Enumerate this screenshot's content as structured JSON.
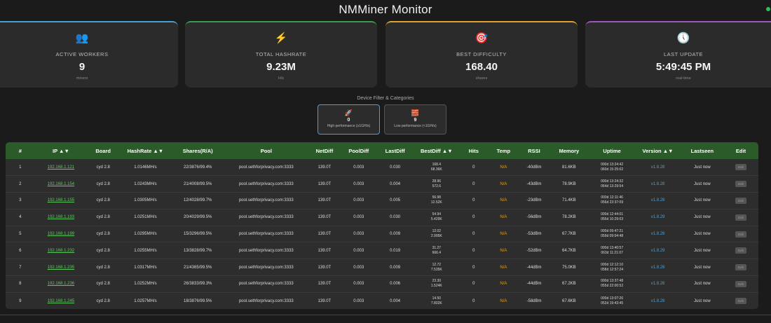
{
  "app": {
    "title": "NMMiner Monitor"
  },
  "cards": [
    {
      "label": "ACTIVE WORKERS",
      "value": "9",
      "sub": "miners",
      "icon": "users-icon",
      "icon_glyph": "👥",
      "color": "#4a9fd6"
    },
    {
      "label": "TOTAL HASHRATE",
      "value": "9.23M",
      "sub": "H/s",
      "icon": "lightning-icon",
      "icon_glyph": "⚡",
      "color": "#3e9a4c"
    },
    {
      "label": "BEST DIFFICULTY",
      "value": "168.40",
      "sub": "shares",
      "icon": "target-icon",
      "icon_glyph": "🎯",
      "color": "#e0a030"
    },
    {
      "label": "LAST UPDATE",
      "value": "5:49:45 PM",
      "sub": "real-time",
      "icon": "clock-icon",
      "icon_glyph": "🕔",
      "color": "#9b59b6"
    }
  ],
  "filter": {
    "title": "Device Filter & Categories",
    "buttons": [
      {
        "count": "0",
        "label": "High performance (≥1GH/s)",
        "icon": "rocket-icon",
        "icon_glyph": "🚀"
      },
      {
        "count": "9",
        "label": "Low performance (<1GH/s)",
        "icon": "brick-icon",
        "icon_glyph": "🧱"
      }
    ]
  },
  "table": {
    "headers": [
      "#",
      "IP ▲▼",
      "Board",
      "HashRate ▲▼",
      "Shares(R/A)",
      "Pool",
      "NetDiff",
      "PoolDiff",
      "LastDiff",
      "BestDiff ▲▼",
      "Hits",
      "Temp",
      "RSSI",
      "Memory",
      "Uptime",
      "Version ▲▼",
      "Lastseen",
      "Edit"
    ],
    "rows": [
      {
        "n": "1",
        "ip": "192.168.1.121",
        "board": "cyd 2.8",
        "hashrate": "1.0146MH/s",
        "shares": "22/3876/99.4%",
        "pool": "pool.sethforprivacy.com:3333",
        "netdiff": "139.0T",
        "pooldiff": "0.003",
        "lastdiff": "0.030",
        "best1": "168.4",
        "best2": "68.36K",
        "hits": "0",
        "temp": "N/A",
        "rssi": "-40dBm",
        "memory": "81.6KB",
        "up1": "000d 13:24:42",
        "up2": "060d 15:25:02",
        "version": "v1.8.28",
        "lastseen": "Just now",
        "edit": "Edit"
      },
      {
        "n": "2",
        "ip": "192.168.1.154",
        "board": "cyd 2.8",
        "hashrate": "1.0243MH/s",
        "shares": "21/4008/99.5%",
        "pool": "pool.sethforprivacy.com:3333",
        "netdiff": "139.0T",
        "pooldiff": "0.003",
        "lastdiff": "0.004",
        "best1": "28.96",
        "best2": "572.6",
        "hits": "0",
        "temp": "N/A",
        "rssi": "-43dBm",
        "memory": "78.9KB",
        "up1": "000d 13:24:32",
        "up2": "064d 13:29:54",
        "version": "v1.8.28",
        "lastseen": "Just now",
        "edit": "Edit"
      },
      {
        "n": "3",
        "ip": "192.168.1.155",
        "board": "cyd 2.8",
        "hashrate": "1.0305MH/s",
        "shares": "12/4028/99.7%",
        "pool": "pool.sethforprivacy.com:3333",
        "netdiff": "139.0T",
        "pooldiff": "0.003",
        "lastdiff": "0.005",
        "best1": "56.98",
        "best2": "12.52K",
        "hits": "0",
        "temp": "N/A",
        "rssi": "-23dBm",
        "memory": "71.4KB",
        "up1": "000d 12:11:46",
        "up2": "056d 23:37:09",
        "version": "v1.8.28",
        "lastseen": "Just now",
        "edit": "Edit"
      },
      {
        "n": "4",
        "ip": "192.168.1.193",
        "board": "cyd 2.8",
        "hashrate": "1.0251MH/s",
        "shares": "20/4029/99.5%",
        "pool": "pool.sethforprivacy.com:3333",
        "netdiff": "139.0T",
        "pooldiff": "0.003",
        "lastdiff": "0.030",
        "best1": "54.94",
        "best2": "5.429K",
        "hits": "0",
        "temp": "N/A",
        "rssi": "-56dBm",
        "memory": "78.2KB",
        "up1": "000d 12:44:01",
        "up2": "055d 10:29:03",
        "version": "v1.8.29",
        "lastseen": "Just now",
        "edit": "Edit"
      },
      {
        "n": "5",
        "ip": "192.168.1.199",
        "board": "cyd 2.8",
        "hashrate": "1.0295MH/s",
        "shares": "15/3296/99.5%",
        "pool": "pool.sethforprivacy.com:3333",
        "netdiff": "139.0T",
        "pooldiff": "0.003",
        "lastdiff": "0.009",
        "best1": "12.02",
        "best2": "2.995K",
        "hits": "0",
        "temp": "N/A",
        "rssi": "-53dBm",
        "memory": "67.7KB",
        "up1": "000d 09:47:21",
        "up2": "059d 09:04:48",
        "version": "v1.8.28",
        "lastseen": "Just now",
        "edit": "Edit"
      },
      {
        "n": "6",
        "ip": "192.168.1.232",
        "board": "cyd 2.8",
        "hashrate": "1.0255MH/s",
        "shares": "13/3828/99.7%",
        "pool": "pool.sethforprivacy.com:3333",
        "netdiff": "139.0T",
        "pooldiff": "0.003",
        "lastdiff": "0.019",
        "best1": "31.27",
        "best2": "666.4",
        "hits": "0",
        "temp": "N/A",
        "rssi": "-52dBm",
        "memory": "64.7KB",
        "up1": "000d 13:40:57",
        "up2": "063d 11:21:07",
        "version": "v1.8.29",
        "lastseen": "Just now",
        "edit": "Edit"
      },
      {
        "n": "7",
        "ip": "192.168.1.235",
        "board": "cyd 2.8",
        "hashrate": "1.0317MH/s",
        "shares": "21/4365/99.5%",
        "pool": "pool.sethforprivacy.com:3333",
        "netdiff": "139.0T",
        "pooldiff": "0.003",
        "lastdiff": "0.009",
        "best1": "12.72",
        "best2": "7.535K",
        "hits": "0",
        "temp": "N/A",
        "rssi": "-44dBm",
        "memory": "75.0KB",
        "up1": "000d 12:12:10",
        "up2": "058d 12:57:24",
        "version": "v1.8.28",
        "lastseen": "Just now",
        "edit": "Edit"
      },
      {
        "n": "8",
        "ip": "192.168.1.236",
        "board": "cyd 2.8",
        "hashrate": "1.0252MH/s",
        "shares": "26/3833/99.3%",
        "pool": "pool.sethforprivacy.com:3333",
        "netdiff": "139.0T",
        "pooldiff": "0.003",
        "lastdiff": "0.006",
        "best1": "23.30",
        "best2": "1.524K",
        "hits": "0",
        "temp": "N/A",
        "rssi": "-44dBm",
        "memory": "67.2KB",
        "up1": "000d 13:37:48",
        "up2": "055d 22:00:52",
        "version": "v1.8.28",
        "lastseen": "Just now",
        "edit": "Edit"
      },
      {
        "n": "9",
        "ip": "192.168.1.245",
        "board": "cyd 2.8",
        "hashrate": "1.0257MH/s",
        "shares": "18/3876/99.5%",
        "pool": "pool.sethforprivacy.com:3333",
        "netdiff": "139.0T",
        "pooldiff": "0.003",
        "lastdiff": "0.004",
        "best1": "14.50",
        "best2": "7.802K",
        "hits": "0",
        "temp": "N/A",
        "rssi": "-58dBm",
        "memory": "67.6KB",
        "up1": "000d 13:07:26",
        "up2": "052d 19:43:45",
        "version": "v1.8.28",
        "lastseen": "Just now",
        "edit": "Edit"
      }
    ]
  },
  "status": {
    "connected_color": "#2fbf58"
  }
}
